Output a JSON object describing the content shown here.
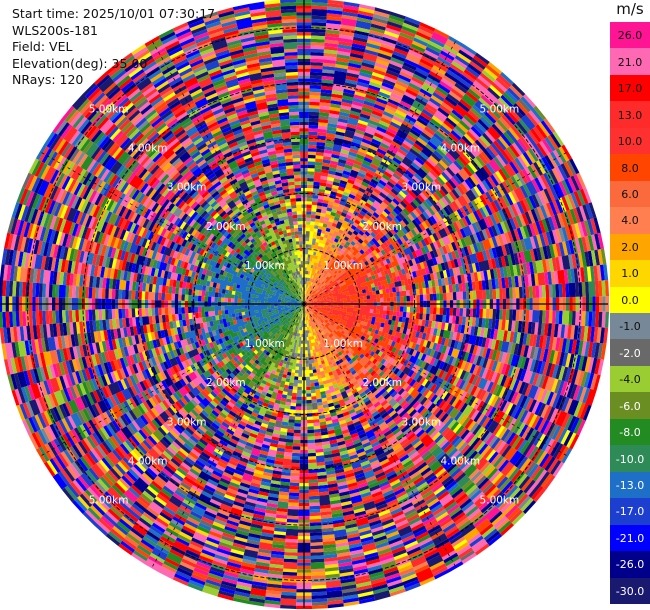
{
  "header": {
    "start_time": "Start time: 2025/10/01 07:30:17",
    "instrument": "WLS200s-181",
    "field": "Field: VEL",
    "elevation": "Elevation(deg): 35.00",
    "nrays": "NRays: 120"
  },
  "colorbar": {
    "unit": "m/s",
    "ticks": [
      "26.0",
      "21.0",
      "17.0",
      "13.0",
      "10.0",
      "8.0",
      "6.0",
      "4.0",
      "2.0",
      "1.0",
      "0.0",
      "-1.0",
      "-2.0",
      "-4.0",
      "-6.0",
      "-8.0",
      "-10.0",
      "-13.0",
      "-17.0",
      "-21.0",
      "-26.0",
      "-30.0"
    ],
    "colors": [
      "#ff1493",
      "#ff69b4",
      "#ff0000",
      "#ff2b2b",
      "#ff3030",
      "#ff4500",
      "#fa6a3c",
      "#ff7f50",
      "#ffa500",
      "#ffd700",
      "#ffff00",
      "#778899",
      "#696969",
      "#9acd32",
      "#6b8e23",
      "#228b22",
      "#2e8b57",
      "#1e6fc8",
      "#1c3fcf",
      "#0000ff",
      "#00008b",
      "#191970"
    ]
  },
  "chart_data": {
    "type": "heatmap",
    "projection": "polar PPI (plan position indicator)",
    "field": "VEL",
    "unit": "m/s",
    "nrays": 120,
    "elevation_deg": 35.0,
    "range_ring_labels": [
      "1.00km",
      "2.00km",
      "3.00km",
      "4.00km",
      "5.00km"
    ],
    "max_range_km": 5.5,
    "color_scale_range": [
      -30,
      30
    ],
    "description_values": {
      "near_field_east": "positive (orange/red, ~6 to 13 m/s)",
      "near_field_west": "negative (blue, ~-10 to -17 m/s)",
      "far_field": "noise spanning full scale"
    },
    "grid": true
  }
}
